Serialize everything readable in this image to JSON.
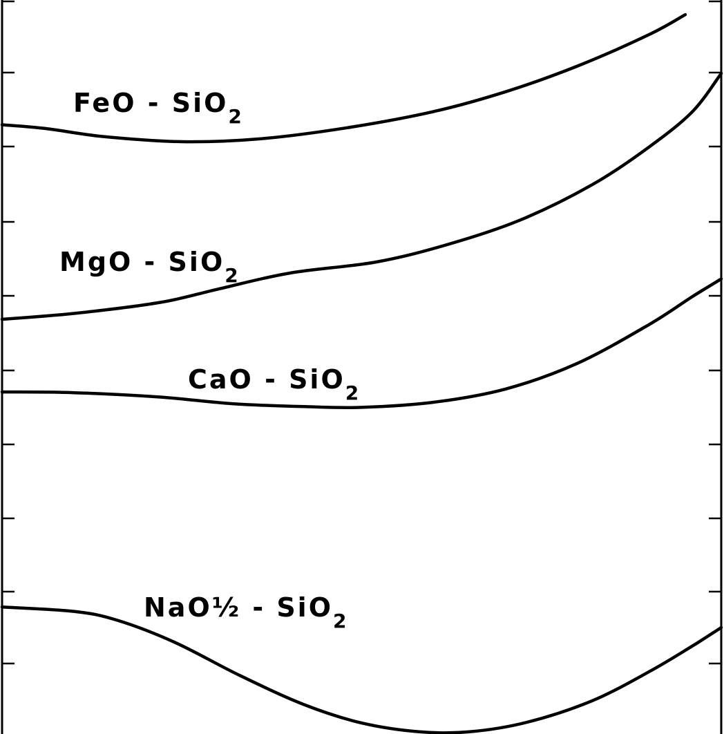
{
  "chart_data": {
    "type": "line",
    "title": "",
    "xlabel": "",
    "ylabel": "",
    "x_range": [
      0,
      1
    ],
    "y_range": [
      0,
      1
    ],
    "grid": false,
    "series": [
      {
        "name": "FeO - SiO2",
        "label": {
          "main": "FeO - SiO",
          "sub": "2"
        },
        "points": [
          [
            0.0,
            0.83
          ],
          [
            0.06,
            0.825
          ],
          [
            0.14,
            0.814
          ],
          [
            0.25,
            0.807
          ],
          [
            0.36,
            0.811
          ],
          [
            0.48,
            0.826
          ],
          [
            0.6,
            0.848
          ],
          [
            0.7,
            0.875
          ],
          [
            0.8,
            0.91
          ],
          [
            0.9,
            0.953
          ],
          [
            0.95,
            0.98
          ]
        ]
      },
      {
        "name": "MgO - SiO2",
        "label": {
          "main": "MgO - SiO",
          "sub": "2"
        },
        "points": [
          [
            0.0,
            0.565
          ],
          [
            0.1,
            0.573
          ],
          [
            0.22,
            0.588
          ],
          [
            0.3,
            0.606
          ],
          [
            0.4,
            0.628
          ],
          [
            0.52,
            0.643
          ],
          [
            0.62,
            0.667
          ],
          [
            0.72,
            0.7
          ],
          [
            0.82,
            0.748
          ],
          [
            0.9,
            0.8
          ],
          [
            0.96,
            0.848
          ],
          [
            1.0,
            0.9
          ]
        ]
      },
      {
        "name": "CaO - SiO2",
        "label": {
          "main": "CaO - SiO",
          "sub": "2"
        },
        "points": [
          [
            0.0,
            0.466
          ],
          [
            0.1,
            0.465
          ],
          [
            0.22,
            0.459
          ],
          [
            0.32,
            0.45
          ],
          [
            0.42,
            0.446
          ],
          [
            0.5,
            0.445
          ],
          [
            0.6,
            0.452
          ],
          [
            0.7,
            0.47
          ],
          [
            0.8,
            0.505
          ],
          [
            0.9,
            0.558
          ],
          [
            0.96,
            0.596
          ],
          [
            1.0,
            0.62
          ]
        ]
      },
      {
        "name": "NaO½ - SiO2",
        "label": {
          "main": "NaO½ - SiO",
          "sub": "2"
        },
        "points": [
          [
            0.0,
            0.173
          ],
          [
            0.1,
            0.167
          ],
          [
            0.16,
            0.155
          ],
          [
            0.24,
            0.125
          ],
          [
            0.33,
            0.08
          ],
          [
            0.42,
            0.04
          ],
          [
            0.5,
            0.015
          ],
          [
            0.58,
            0.003
          ],
          [
            0.65,
            0.003
          ],
          [
            0.73,
            0.016
          ],
          [
            0.82,
            0.045
          ],
          [
            0.9,
            0.085
          ],
          [
            0.96,
            0.12
          ],
          [
            1.0,
            0.145
          ]
        ]
      }
    ]
  }
}
